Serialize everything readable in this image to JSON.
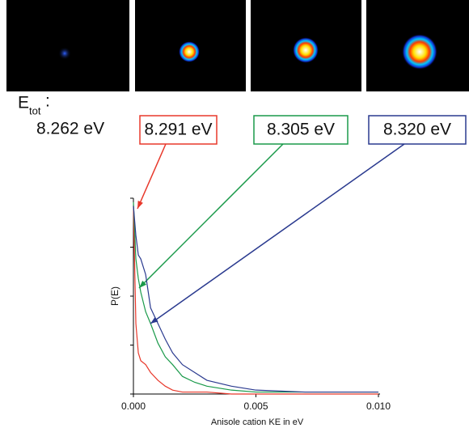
{
  "etot_label": {
    "main": "E",
    "sub": "tot",
    "suffix": ":"
  },
  "first_energy": "8.262 eV",
  "chart_data": {
    "type": "line",
    "x_label": "Anisole cation KE in eV",
    "y_label": "P(E)",
    "x": [
      0,
      0.0001,
      0.0002,
      0.0003,
      0.0005,
      0.0007,
      0.001,
      0.0013,
      0.0016,
      0.002,
      0.0025,
      0.003,
      0.004,
      0.005,
      0.007,
      0.01
    ],
    "series": [
      {
        "name": "8.291 eV",
        "color": "#e8382b",
        "values": [
          0.96,
          0.36,
          0.21,
          0.17,
          0.15,
          0.11,
          0.07,
          0.04,
          0.02,
          0.01,
          0.01,
          0.01,
          0,
          0,
          0,
          0
        ]
      },
      {
        "name": "8.305 eV",
        "color": "#1a9a4a",
        "values": [
          0.98,
          0.69,
          0.59,
          0.52,
          0.42,
          0.36,
          0.26,
          0.19,
          0.15,
          0.09,
          0.06,
          0.04,
          0.02,
          0.01,
          0.01,
          0.01
        ]
      },
      {
        "name": "8.320 eV",
        "color": "#2a3a8f",
        "values": [
          0.96,
          0.81,
          0.71,
          0.69,
          0.61,
          0.44,
          0.36,
          0.28,
          0.21,
          0.15,
          0.11,
          0.07,
          0.04,
          0.02,
          0.01,
          0.01
        ]
      }
    ],
    "xlim": [
      0,
      0.01
    ],
    "ylim": [
      0,
      1
    ],
    "xticks": [
      {
        "value": 0,
        "label": "0.000"
      },
      {
        "value": 0.005,
        "label": "0.005"
      },
      {
        "value": 0.01,
        "label": "0.010"
      }
    ],
    "yticks": [
      0,
      0.25,
      0.5,
      0.75,
      1
    ]
  }
}
